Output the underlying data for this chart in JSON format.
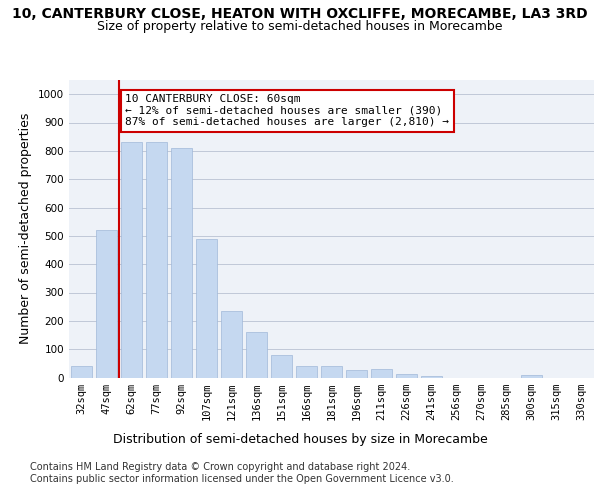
{
  "title_line1": "10, CANTERBURY CLOSE, HEATON WITH OXCLIFFE, MORECAMBE, LA3 3RD",
  "title_line2": "Size of property relative to semi-detached houses in Morecambe",
  "xlabel": "Distribution of semi-detached houses by size in Morecambe",
  "ylabel": "Number of semi-detached properties",
  "categories": [
    "32sqm",
    "47sqm",
    "62sqm",
    "77sqm",
    "92sqm",
    "107sqm",
    "121sqm",
    "136sqm",
    "151sqm",
    "166sqm",
    "181sqm",
    "196sqm",
    "211sqm",
    "226sqm",
    "241sqm",
    "256sqm",
    "270sqm",
    "285sqm",
    "300sqm",
    "315sqm",
    "330sqm"
  ],
  "values": [
    40,
    520,
    830,
    830,
    810,
    490,
    235,
    160,
    78,
    42,
    42,
    28,
    30,
    12,
    5,
    0,
    0,
    0,
    10,
    0,
    0
  ],
  "bar_color": "#c5d8f0",
  "bar_edge_color": "#a0b8d8",
  "annotation_text": "10 CANTERBURY CLOSE: 60sqm\n← 12% of semi-detached houses are smaller (390)\n87% of semi-detached houses are larger (2,810) →",
  "annotation_box_color": "#ffffff",
  "annotation_box_edge_color": "#cc0000",
  "vline_color": "#cc0000",
  "vline_x": 1.5,
  "ylim": [
    0,
    1050
  ],
  "grid_color": "#c0c8d8",
  "background_color": "#eef2f8",
  "footer_line1": "Contains HM Land Registry data © Crown copyright and database right 2024.",
  "footer_line2": "Contains public sector information licensed under the Open Government Licence v3.0.",
  "title_fontsize": 10,
  "subtitle_fontsize": 9,
  "axis_label_fontsize": 9,
  "tick_fontsize": 7.5,
  "annotation_fontsize": 8,
  "footer_fontsize": 7
}
